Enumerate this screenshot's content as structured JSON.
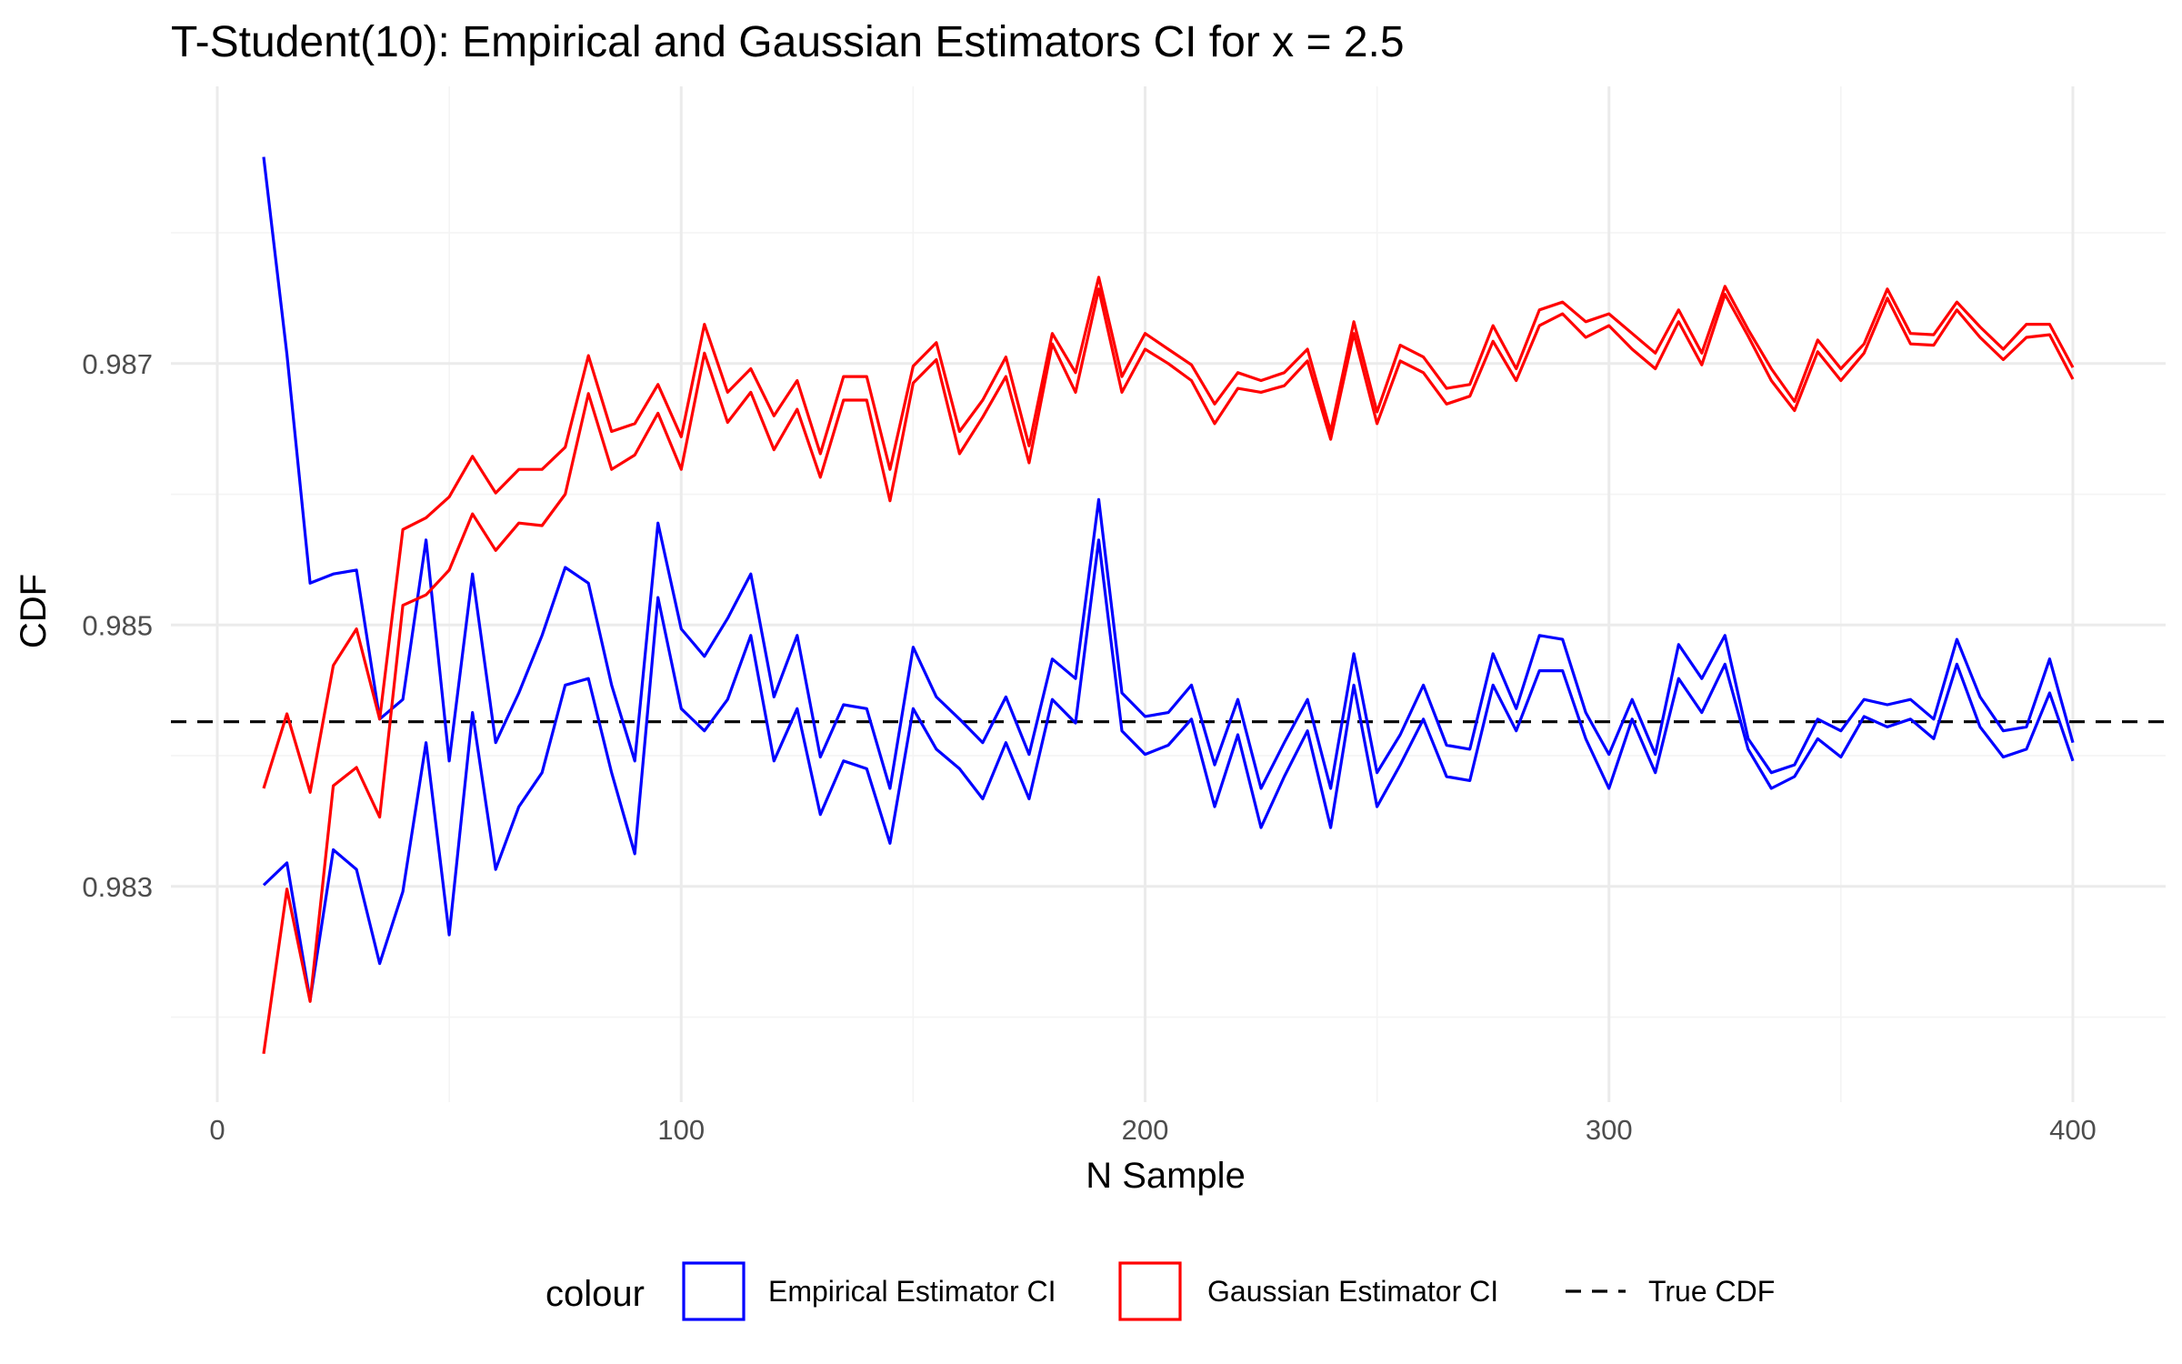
{
  "chart_data": {
    "type": "line",
    "title": "T-Student(10): Empirical and Gaussian Estimators CI for x = 2.5",
    "xlabel": "N Sample",
    "ylabel": "CDF",
    "xlim": [
      -10,
      420
    ],
    "ylim": [
      0.98135,
      0.98912
    ],
    "x_ticks": [
      0,
      100,
      200,
      300,
      400
    ],
    "x_tick_labels": [
      "0",
      "100",
      "200",
      "300",
      "400"
    ],
    "y_ticks": [
      0.983,
      0.985,
      0.987
    ],
    "y_tick_labels": [
      "0.983",
      "0.985",
      "0.987"
    ],
    "grid": true,
    "legend": {
      "title": "colour",
      "position": "bottom",
      "entries": [
        {
          "label": "Empirical Estimator CI",
          "color": "#0000ff",
          "style": "box"
        },
        {
          "label": "Gaussian Estimator CI",
          "color": "#ff0000",
          "style": "box"
        },
        {
          "label": "True CDF",
          "color": "#000000",
          "style": "dashed"
        }
      ]
    },
    "x": [
      10,
      15,
      20,
      25,
      30,
      35,
      40,
      45,
      50,
      55,
      60,
      65,
      70,
      75,
      80,
      85,
      90,
      95,
      100,
      105,
      110,
      115,
      120,
      125,
      130,
      135,
      140,
      145,
      150,
      155,
      160,
      165,
      170,
      175,
      180,
      185,
      190,
      195,
      200,
      205,
      210,
      215,
      220,
      225,
      230,
      235,
      240,
      245,
      250,
      255,
      260,
      265,
      270,
      275,
      280,
      285,
      290,
      295,
      300,
      305,
      310,
      315,
      320,
      325,
      330,
      335,
      340,
      345,
      350,
      355,
      360,
      365,
      370,
      375,
      380,
      385,
      390,
      395,
      400
    ],
    "reference_line": {
      "name": "True CDF",
      "y": 0.98426,
      "color": "#000000",
      "style": "dashed"
    },
    "series": [
      {
        "name": "Empirical Estimator CI",
        "color": "#0000ff",
        "upper": [
          0.98858,
          0.98707,
          0.98532,
          0.98539,
          0.98542,
          0.98428,
          0.98443,
          0.98565,
          0.98396,
          0.98539,
          0.9841,
          0.98448,
          0.98492,
          0.98544,
          0.98532,
          0.98454,
          0.98396,
          0.98578,
          0.98497,
          0.98476,
          0.98505,
          0.98539,
          0.98445,
          0.98492,
          0.98399,
          0.98439,
          0.98436,
          0.98375,
          0.98483,
          0.98445,
          0.98428,
          0.9841,
          0.98445,
          0.98401,
          0.98474,
          0.98459,
          0.98596,
          0.98448,
          0.9843,
          0.98433,
          0.98454,
          0.98393,
          0.98443,
          0.98375,
          0.9841,
          0.98443,
          0.98375,
          0.98478,
          0.98387,
          0.98416,
          0.98454,
          0.98408,
          0.98405,
          0.98478,
          0.98436,
          0.98492,
          0.98489,
          0.98433,
          0.98401,
          0.98443,
          0.98401,
          0.98485,
          0.98459,
          0.98492,
          0.98413,
          0.98387,
          0.98393,
          0.98428,
          0.98419,
          0.98443,
          0.98439,
          0.98443,
          0.98428,
          0.98489,
          0.98445,
          0.98419,
          0.98422,
          0.98474,
          0.9841
        ],
        "lower": [
          0.98301,
          0.98318,
          0.98213,
          0.98328,
          0.98313,
          0.98241,
          0.98296,
          0.9841,
          0.98263,
          0.98433,
          0.98313,
          0.98361,
          0.98387,
          0.98454,
          0.98459,
          0.98387,
          0.98325,
          0.98521,
          0.98436,
          0.98419,
          0.98443,
          0.98492,
          0.98396,
          0.98436,
          0.98355,
          0.98396,
          0.9839,
          0.98333,
          0.98436,
          0.98405,
          0.9839,
          0.98367,
          0.9841,
          0.98367,
          0.98443,
          0.98425,
          0.98565,
          0.98419,
          0.98401,
          0.98408,
          0.98428,
          0.98361,
          0.98416,
          0.98345,
          0.98384,
          0.98419,
          0.98345,
          0.98454,
          0.98361,
          0.98393,
          0.98428,
          0.98384,
          0.98381,
          0.98454,
          0.98419,
          0.98465,
          0.98465,
          0.98413,
          0.98375,
          0.98428,
          0.98387,
          0.98459,
          0.98433,
          0.9847,
          0.98405,
          0.98375,
          0.98384,
          0.98413,
          0.98399,
          0.9843,
          0.98422,
          0.98428,
          0.98413,
          0.9847,
          0.98422,
          0.98399,
          0.98405,
          0.98448,
          0.98396
        ]
      },
      {
        "name": "Gaussian Estimator CI",
        "color": "#ff0000",
        "upper": [
          0.98375,
          0.98432,
          0.98372,
          0.98469,
          0.98497,
          0.98428,
          0.98573,
          0.98582,
          0.98598,
          0.98629,
          0.98601,
          0.98619,
          0.98619,
          0.98636,
          0.98706,
          0.98648,
          0.98654,
          0.98684,
          0.98644,
          0.9873,
          0.98678,
          0.98696,
          0.9866,
          0.98687,
          0.98631,
          0.9869,
          0.9869,
          0.98619,
          0.98698,
          0.98716,
          0.98648,
          0.98672,
          0.98705,
          0.98637,
          0.98723,
          0.98693,
          0.98766,
          0.9869,
          0.98723,
          0.98711,
          0.98699,
          0.98669,
          0.98693,
          0.98687,
          0.98693,
          0.98711,
          0.98648,
          0.98732,
          0.98663,
          0.98714,
          0.98705,
          0.98681,
          0.98684,
          0.98729,
          0.98696,
          0.98741,
          0.98747,
          0.98732,
          0.98738,
          0.98723,
          0.98708,
          0.98741,
          0.98708,
          0.98759,
          0.98726,
          0.98696,
          0.98671,
          0.98718,
          0.98696,
          0.98715,
          0.98757,
          0.98723,
          0.98722,
          0.98747,
          0.98728,
          0.98711,
          0.9873,
          0.9873,
          0.98697
        ],
        "lower": [
          0.98172,
          0.98298,
          0.98212,
          0.98377,
          0.98391,
          0.98353,
          0.98515,
          0.98523,
          0.98542,
          0.98585,
          0.98557,
          0.98578,
          0.98576,
          0.986,
          0.98677,
          0.98619,
          0.9863,
          0.98662,
          0.98619,
          0.98708,
          0.98655,
          0.98678,
          0.98634,
          0.98665,
          0.98613,
          0.98672,
          0.98672,
          0.98595,
          0.98685,
          0.98703,
          0.98631,
          0.98659,
          0.9869,
          0.98624,
          0.98715,
          0.98678,
          0.98757,
          0.98678,
          0.98711,
          0.987,
          0.98687,
          0.98654,
          0.98681,
          0.98678,
          0.98683,
          0.98702,
          0.98642,
          0.98723,
          0.98654,
          0.98702,
          0.98693,
          0.98669,
          0.98675,
          0.98717,
          0.98687,
          0.98729,
          0.98738,
          0.9872,
          0.98729,
          0.98711,
          0.98696,
          0.98732,
          0.98699,
          0.98753,
          0.98721,
          0.98687,
          0.98664,
          0.98709,
          0.98687,
          0.98708,
          0.9875,
          0.98715,
          0.98714,
          0.98741,
          0.9872,
          0.98703,
          0.9872,
          0.98722,
          0.98688
        ]
      }
    ]
  }
}
